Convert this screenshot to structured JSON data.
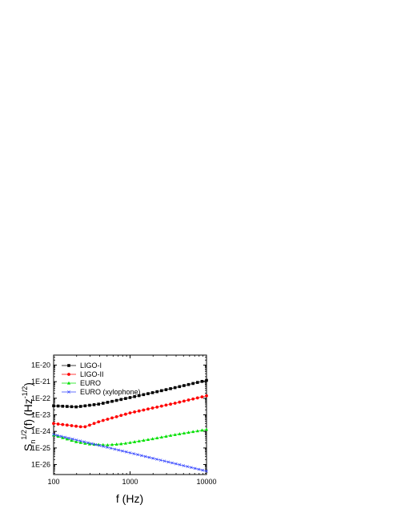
{
  "chart_data": {
    "type": "line",
    "xscale": "log",
    "yscale": "log",
    "xlim": [
      100,
      10000
    ],
    "ylim": [
      2.5e-27,
      4e-20
    ],
    "xlabel": "f (Hz)",
    "ylabel": {
      "main": "S",
      "subscript": "n",
      "superscript": "1/2",
      "middle": "(f) (Hz",
      "unit_superscript": "-1/2",
      "end": ")"
    },
    "x_ticks": [
      {
        "value": 100,
        "label": "100"
      },
      {
        "value": 1000,
        "label": "1000"
      },
      {
        "value": 10000,
        "label": "10000"
      }
    ],
    "y_ticks": [
      {
        "value": 1e-26,
        "label": "1E-26"
      },
      {
        "value": 1e-25,
        "label": "1E-25"
      },
      {
        "value": 1e-24,
        "label": "1E-24"
      },
      {
        "value": 1e-23,
        "label": "1E-23"
      },
      {
        "value": 1e-22,
        "label": "1E-22"
      },
      {
        "value": 1e-21,
        "label": "1E-21"
      },
      {
        "value": 1e-20,
        "label": "1E-20"
      }
    ],
    "legend_position": "top-left",
    "grid": false,
    "series": [
      {
        "name": "LIGO-I",
        "color": "#000000",
        "marker": "square",
        "x": [
          100,
          200,
          400,
          1000,
          2000,
          4000,
          10000
        ],
        "y": [
          3.5e-23,
          3e-23,
          4.5e-23,
          1.1e-22,
          2.2e-22,
          4.5e-22,
          1.2e-21
        ]
      },
      {
        "name": "LIGO-II",
        "color": "#ff0000",
        "marker": "circle",
        "x": [
          100,
          150,
          250,
          400,
          1000,
          2000,
          4000,
          10000
        ],
        "y": [
          3e-24,
          2.4e-24,
          1.8e-24,
          4e-24,
          1.3e-23,
          2.6e-23,
          5.2e-23,
          1.4e-22
        ]
      },
      {
        "name": "EURO",
        "color": "#00e000",
        "marker": "triangle",
        "x": [
          100,
          200,
          300,
          500,
          800,
          1000,
          2000,
          4000,
          10000
        ],
        "y": [
          6e-25,
          2.3e-25,
          1.7e-25,
          1.5e-25,
          1.8e-25,
          2.1e-25,
          3.6e-25,
          6.5e-25,
          1.3e-24
        ]
      },
      {
        "name": "EURO (xylophone)",
        "color": "#3344ff",
        "marker": "x",
        "x": [
          100,
          10000
        ],
        "y": [
          6.5e-25,
          4e-27
        ]
      }
    ]
  }
}
